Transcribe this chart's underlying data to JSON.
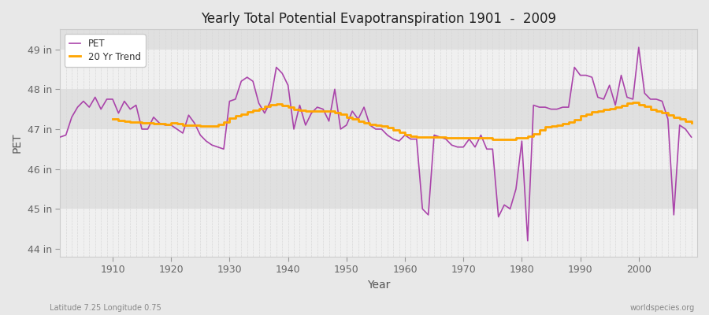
{
  "title": "Yearly Total Potential Evapotranspiration 1901  -  2009",
  "xlabel": "Year",
  "ylabel": "PET",
  "footnote_left": "Latitude 7.25 Longitude 0.75",
  "footnote_right": "worldspecies.org",
  "pet_color": "#aa44aa",
  "trend_color": "#FFA500",
  "background_color": "#e8e8e8",
  "plot_bg_light": "#f0f0f0",
  "plot_bg_dark": "#e0e0e0",
  "grid_color": "#cccccc",
  "ylim": [
    43.8,
    49.5
  ],
  "yticks": [
    44,
    45,
    46,
    47,
    48,
    49
  ],
  "ytick_labels": [
    "44 in",
    "45 in",
    "46 in",
    "47 in",
    "48 in",
    "49 in"
  ],
  "xlim": [
    1901,
    2010
  ],
  "xticks": [
    1910,
    1920,
    1930,
    1940,
    1950,
    1960,
    1970,
    1980,
    1990,
    2000
  ],
  "years": [
    1901,
    1902,
    1903,
    1904,
    1905,
    1906,
    1907,
    1908,
    1909,
    1910,
    1911,
    1912,
    1913,
    1914,
    1915,
    1916,
    1917,
    1918,
    1919,
    1920,
    1921,
    1922,
    1923,
    1924,
    1925,
    1926,
    1927,
    1928,
    1929,
    1930,
    1931,
    1932,
    1933,
    1934,
    1935,
    1936,
    1937,
    1938,
    1939,
    1940,
    1941,
    1942,
    1943,
    1944,
    1945,
    1946,
    1947,
    1948,
    1949,
    1950,
    1951,
    1952,
    1953,
    1954,
    1955,
    1956,
    1957,
    1958,
    1959,
    1960,
    1961,
    1962,
    1963,
    1964,
    1965,
    1966,
    1967,
    1968,
    1969,
    1970,
    1971,
    1972,
    1973,
    1974,
    1975,
    1976,
    1977,
    1978,
    1979,
    1980,
    1981,
    1982,
    1983,
    1984,
    1985,
    1986,
    1987,
    1988,
    1989,
    1990,
    1991,
    1992,
    1993,
    1994,
    1995,
    1996,
    1997,
    1998,
    1999,
    2000,
    2001,
    2002,
    2003,
    2004,
    2005,
    2006,
    2007,
    2008,
    2009
  ],
  "pet": [
    46.8,
    46.85,
    47.3,
    47.55,
    47.7,
    47.55,
    47.8,
    47.5,
    47.75,
    47.75,
    47.4,
    47.7,
    47.5,
    47.6,
    47.0,
    47.0,
    47.3,
    47.15,
    47.1,
    47.1,
    47.0,
    46.9,
    47.35,
    47.15,
    46.85,
    46.7,
    46.6,
    46.55,
    46.5,
    47.7,
    47.75,
    48.2,
    48.3,
    48.2,
    47.65,
    47.4,
    47.7,
    48.55,
    48.4,
    48.1,
    47.0,
    47.6,
    47.1,
    47.4,
    47.55,
    47.5,
    47.2,
    48.0,
    47.0,
    47.1,
    47.45,
    47.25,
    47.55,
    47.1,
    47.0,
    47.0,
    46.85,
    46.75,
    46.7,
    46.85,
    46.75,
    46.75,
    45.0,
    44.85,
    46.85,
    46.8,
    46.75,
    46.6,
    46.55,
    46.55,
    46.75,
    46.55,
    46.85,
    46.5,
    46.5,
    44.8,
    45.1,
    45.0,
    45.5,
    46.7,
    44.2,
    47.6,
    47.55,
    47.55,
    47.5,
    47.5,
    47.55,
    47.55,
    48.55,
    48.35,
    48.35,
    48.3,
    47.8,
    47.75,
    48.1,
    47.6,
    48.35,
    47.8,
    47.75,
    49.05,
    47.9,
    47.75,
    47.75,
    47.7,
    47.25,
    44.85,
    47.1,
    47.0,
    46.8
  ],
  "trend_years": [
    1910,
    1911,
    1912,
    1913,
    1914,
    1915,
    1916,
    1917,
    1918,
    1919,
    1920,
    1921,
    1922,
    1923,
    1924,
    1925,
    1926,
    1927,
    1928,
    1929,
    1930,
    1931,
    1932,
    1933,
    1934,
    1935,
    1936,
    1937,
    1938,
    1939,
    1940,
    1941,
    1942,
    1943,
    1944,
    1945,
    1946,
    1947,
    1948,
    1949,
    1950,
    1951,
    1952,
    1953,
    1954,
    1955,
    1956,
    1957,
    1958,
    1959,
    1960,
    1961,
    1962,
    1963,
    1964,
    1965,
    1966,
    1967,
    1968,
    1969,
    1970,
    1971,
    1972,
    1973,
    1974,
    1975,
    1976,
    1977,
    1978,
    1979,
    1980,
    1981,
    1982,
    1983,
    1984,
    1985,
    1986,
    1987,
    1988,
    1989,
    1990,
    1991,
    1992,
    1993,
    1994,
    1995,
    1996,
    1997,
    1998,
    1999,
    2000,
    2001,
    2002,
    2003,
    2004,
    2005,
    2006,
    2007,
    2008,
    2009
  ],
  "trend": [
    47.25,
    47.22,
    47.2,
    47.18,
    47.17,
    47.16,
    47.15,
    47.14,
    47.13,
    47.12,
    47.15,
    47.13,
    47.1,
    47.1,
    47.09,
    47.08,
    47.08,
    47.08,
    47.12,
    47.18,
    47.28,
    47.33,
    47.38,
    47.43,
    47.48,
    47.52,
    47.57,
    47.62,
    47.63,
    47.6,
    47.55,
    47.5,
    47.47,
    47.45,
    47.45,
    47.45,
    47.45,
    47.45,
    47.42,
    47.38,
    47.3,
    47.25,
    47.2,
    47.16,
    47.12,
    47.1,
    47.07,
    47.03,
    46.97,
    46.92,
    46.87,
    46.83,
    46.8,
    46.8,
    46.8,
    46.8,
    46.8,
    46.78,
    46.78,
    46.78,
    46.78,
    46.78,
    46.78,
    46.78,
    46.78,
    46.75,
    46.75,
    46.75,
    46.75,
    46.78,
    46.78,
    46.83,
    46.88,
    46.97,
    47.05,
    47.08,
    47.1,
    47.14,
    47.18,
    47.23,
    47.33,
    47.38,
    47.43,
    47.45,
    47.5,
    47.52,
    47.55,
    47.6,
    47.65,
    47.67,
    47.62,
    47.57,
    47.5,
    47.46,
    47.42,
    47.36,
    47.3,
    47.26,
    47.2,
    47.15
  ]
}
